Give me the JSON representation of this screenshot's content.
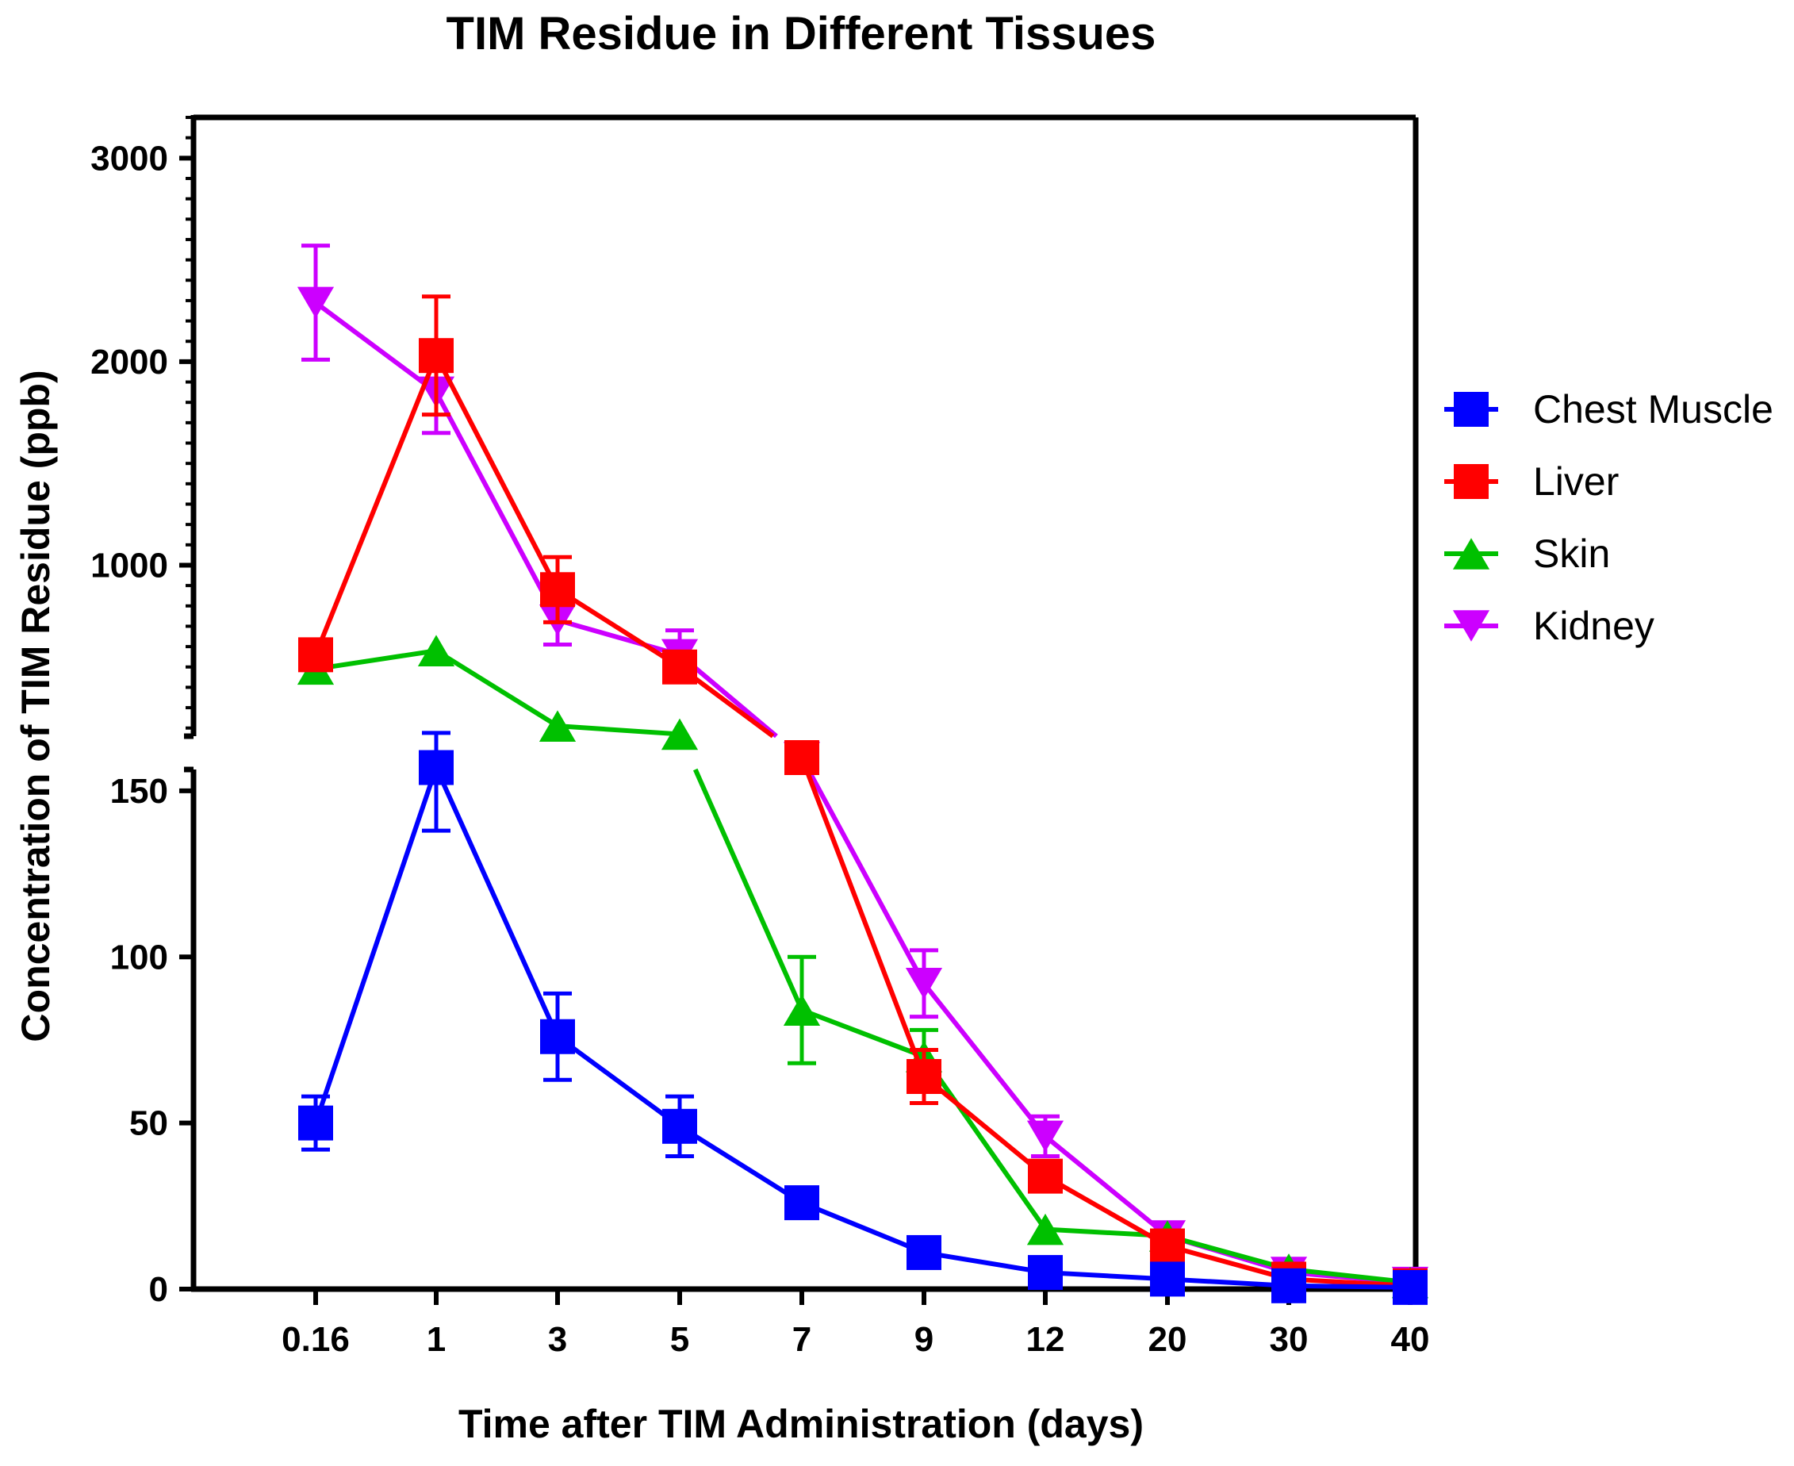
{
  "chart_data": {
    "type": "line",
    "title": "TIM Residue in Different Tissues",
    "xlabel": "Time after TIM Administration (days)",
    "ylabel": "Concentration of TIM Residue (ppb)",
    "x_is_categorical": true,
    "categories": [
      "0.16",
      "1",
      "3",
      "5",
      "7",
      "9",
      "12",
      "20",
      "30",
      "40"
    ],
    "y_axis_break": {
      "lower_range": [
        0,
        160
      ],
      "upper_range": [
        160,
        3200
      ],
      "lower_ticks": [
        "0",
        "50",
        "100",
        "150"
      ],
      "upper_ticks": [
        "1000",
        "2000",
        "3000"
      ]
    },
    "legend_position": "right",
    "series": [
      {
        "name": "Chest Muscle",
        "color": "#0000ff",
        "marker": "square",
        "values": [
          50,
          157,
          76,
          49,
          26,
          11,
          5,
          3,
          1,
          0.5
        ],
        "errors": [
          8,
          19,
          13,
          9,
          0,
          0,
          0,
          0,
          0,
          0
        ]
      },
      {
        "name": "Liver",
        "color": "#ff0000",
        "marker": "square",
        "values": [
          560,
          2030,
          880,
          500,
          160,
          64,
          34,
          13,
          3,
          1
        ],
        "errors": [
          0,
          290,
          160,
          60,
          0,
          8,
          4,
          0,
          0,
          0
        ]
      },
      {
        "name": "Skin",
        "color": "#00c000",
        "marker": "triangle-up",
        "values": [
          490,
          580,
          210,
          170,
          84,
          70,
          18,
          16,
          6,
          2
        ],
        "errors": [
          0,
          0,
          0,
          0,
          16,
          8,
          0,
          0,
          0,
          0
        ]
      },
      {
        "name": "Kidney",
        "color": "#cc00ff",
        "marker": "triangle-down",
        "values": [
          2290,
          1850,
          730,
          560,
          160,
          92,
          46,
          16,
          5,
          2
        ],
        "errors": [
          280,
          200,
          120,
          120,
          0,
          10,
          6,
          0,
          0,
          0
        ]
      }
    ]
  }
}
